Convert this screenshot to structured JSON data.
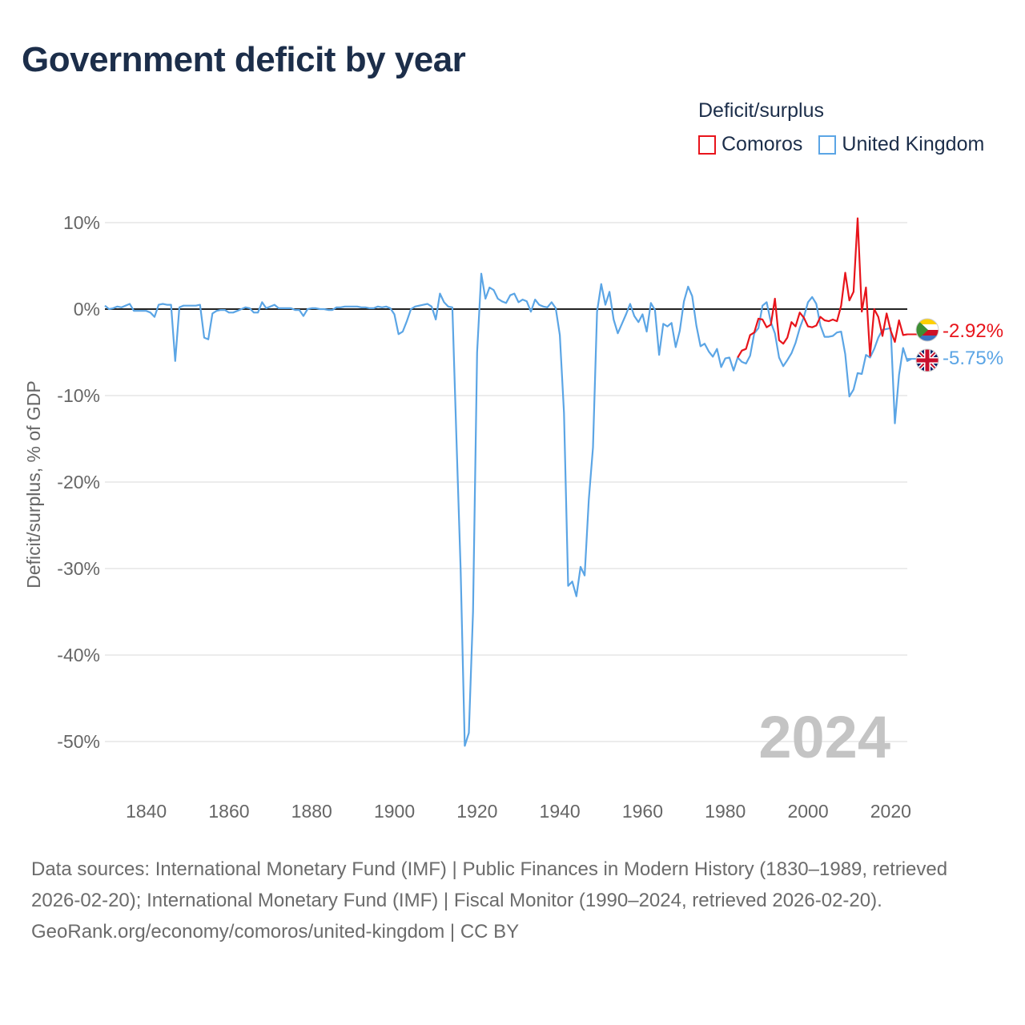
{
  "title": "Government deficit by year",
  "legend": {
    "title": "Deficit/surplus",
    "items": [
      {
        "label": "Comoros",
        "color": "#e8141b"
      },
      {
        "label": "United Kingdom",
        "color": "#5ba5e5"
      }
    ]
  },
  "footer": {
    "sources": "Data sources: International Monetary Fund (IMF) | Public Finances in Modern History (1830–1989, retrieved 2026-02-20); International Monetary Fund (IMF) | Fiscal Monitor (1990–2024, retrieved 2026-02-20).",
    "credit": "GeoRank.org/economy/comoros/united-kingdom | CC BY"
  },
  "chart_data": {
    "type": "line",
    "title": "Government deficit by year",
    "xlabel": "",
    "ylabel": "Deficit/surplus, % of GDP",
    "xlim": [
      1830,
      2024
    ],
    "ylim": [
      -55,
      12
    ],
    "year_label": "2024",
    "x_ticks": [
      1840,
      1860,
      1880,
      1900,
      1920,
      1940,
      1960,
      1980,
      2000,
      2020
    ],
    "y_ticks": [
      10,
      0,
      -10,
      -20,
      -30,
      -40,
      -50
    ],
    "y_tick_labels": [
      "10%",
      "0%",
      "-10%",
      "-20%",
      "-30%",
      "-40%",
      "-50%"
    ],
    "grid": true,
    "zero_line": true,
    "series": [
      {
        "name": "United Kingdom",
        "color": "#5ba5e5",
        "end_label": "-5.75%",
        "x_start": 1830,
        "values": [
          0.4,
          0,
          0.1,
          0.3,
          0.2,
          0.4,
          0.6,
          -0.2,
          -0.2,
          -0.2,
          -0.2,
          -0.4,
          -0.9,
          0.5,
          0.6,
          0.5,
          0.5,
          -6.0,
          0.2,
          0.4,
          0.4,
          0.4,
          0.4,
          0.5,
          -3.3,
          -3.5,
          -0.5,
          -0.2,
          -0.1,
          -0.1,
          -0.4,
          -0.4,
          -0.2,
          0,
          0.2,
          0.1,
          -0.4,
          -0.4,
          0.8,
          0.1,
          0.3,
          0.5,
          0.1,
          0.1,
          0.1,
          0.1,
          -0.1,
          -0.1,
          -0.8,
          0,
          0.1,
          0.1,
          0,
          0,
          -0.1,
          -0.1,
          0.2,
          0.2,
          0.3,
          0.3,
          0.3,
          0.3,
          0.2,
          0.2,
          0.1,
          0.1,
          0.3,
          0.2,
          0.3,
          0.1,
          -0.6,
          -2.9,
          -2.6,
          -1.4,
          0,
          0.3,
          0.4,
          0.5,
          0.6,
          0.3,
          -1.2,
          1.8,
          0.8,
          0.3,
          0.2,
          -15,
          -30,
          -50.5,
          -49,
          -35,
          -5,
          4.1,
          1.2,
          2.5,
          2.2,
          1.2,
          0.9,
          0.7,
          1.6,
          1.8,
          0.8,
          1.1,
          0.9,
          -0.3,
          1.1,
          0.5,
          0.3,
          0.2,
          0.8,
          0.1,
          -3,
          -12,
          -32,
          -31.5,
          -33.2,
          -29.8,
          -30.8,
          -22,
          -16,
          -0.3,
          2.9,
          0.5,
          2.0,
          -1.2,
          -2.8,
          -1.7,
          -0.6,
          0.6,
          -0.8,
          -1.5,
          -0.6,
          -2.6,
          0.7,
          -0.1,
          -5.3,
          -1.7,
          -2,
          -1.6,
          -4.4,
          -2.5,
          0.9,
          2.6,
          1.5,
          -1.9,
          -4.3,
          -4,
          -4.9,
          -5.5,
          -4.6,
          -6.7,
          -5.7,
          -5.6,
          -7.1,
          -5.6,
          -6.1,
          -6.3,
          -5.4,
          -2.8,
          -2.2,
          0.4,
          0.8,
          -1.5,
          -2.8,
          -5.6,
          -6.6,
          -5.9,
          -5.1,
          -3.9,
          -2.2,
          -0.9,
          0.8,
          1.4,
          0.6,
          -1.9,
          -3.2,
          -3.2,
          -3.1,
          -2.7,
          -2.6,
          -5.2,
          -10.1,
          -9.3,
          -7.4,
          -7.5,
          -5.3,
          -5.6,
          -4.6,
          -3.3,
          -2.4,
          -2.3,
          -2.2,
          -13.2,
          -7.6,
          -4.5,
          -6.0,
          -5.75
        ]
      },
      {
        "name": "Comoros",
        "color": "#e8141b",
        "end_label": "-2.92%",
        "x_start": 1983,
        "values": [
          -5.6,
          -4.8,
          -4.6,
          -3.0,
          -2.7,
          -1.1,
          -1.2,
          -2.1,
          -1.8,
          1.2,
          -3.6,
          -4.0,
          -3.3,
          -1.5,
          -2.0,
          -0.4,
          -1.0,
          -2.0,
          -2.1,
          -1.9,
          -0.9,
          -1.3,
          -1.4,
          -1.2,
          -1.4,
          0.4,
          4.2,
          1.0,
          2.0,
          10.5,
          -0.3,
          2.5,
          -5.4,
          0.0,
          -0.9,
          -3.1,
          -0.5,
          -2.5,
          -3.8,
          -1.3,
          -3.0,
          -2.92
        ]
      }
    ]
  }
}
